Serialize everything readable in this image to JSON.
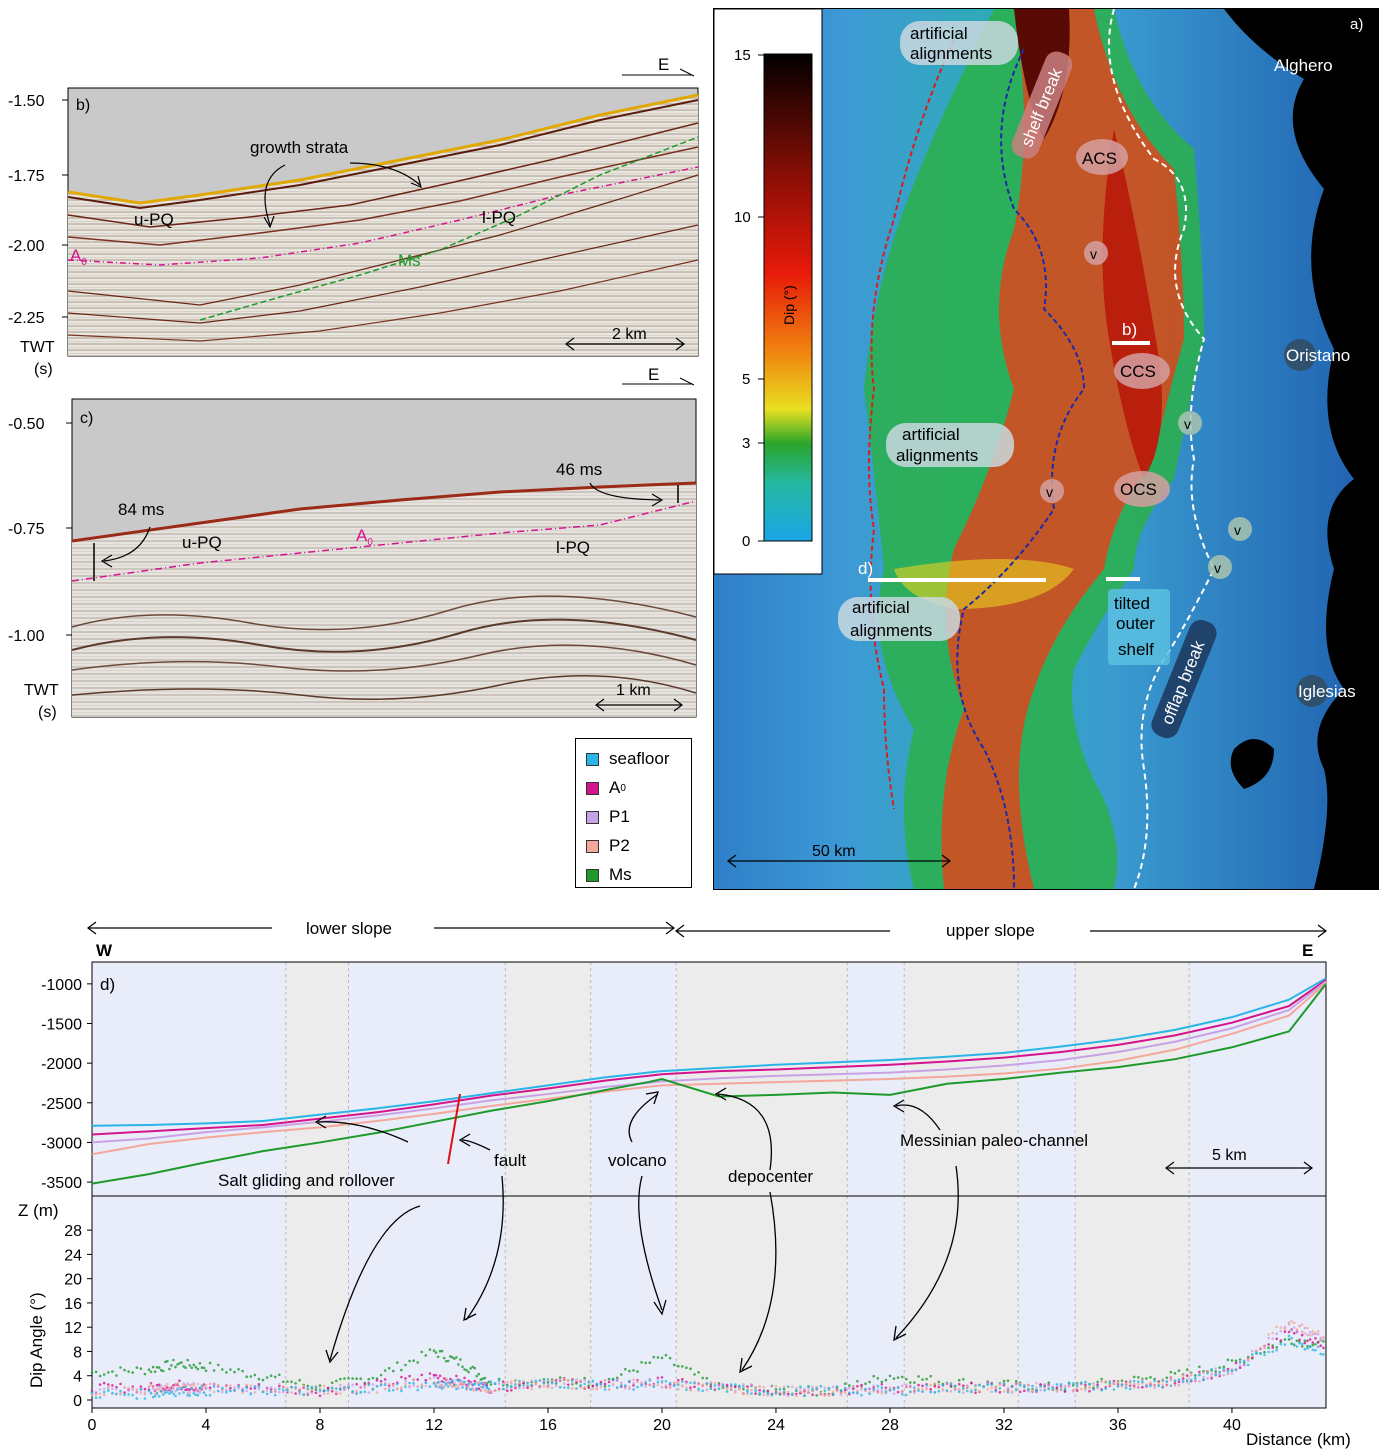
{
  "panel_a": {
    "label": "a)",
    "colorbar_title": "Dip (°)",
    "colorbar_ticks": [
      "15",
      "10",
      "5",
      "3",
      "0"
    ],
    "towns": [
      "Alghero",
      "Oristano",
      "Iglesias"
    ],
    "labels": {
      "artificial_1": [
        "artificial",
        "alignments"
      ],
      "artificial_2": [
        "artificial",
        "alignments"
      ],
      "artificial_3": [
        "artificial",
        "alignments"
      ],
      "shelf_break": "shelf break",
      "acs": "ACS",
      "ccs": "CCS",
      "ocs": "OCS",
      "v": "v",
      "b_line": "b)",
      "d_line": "d)",
      "tilted": [
        "tilted",
        "outer",
        "shelf"
      ],
      "offlap": "offlap break"
    },
    "scale": "50 km"
  },
  "panel_b": {
    "label": "b)",
    "direction": "E",
    "yticks": [
      "-1.50",
      "-1.75",
      "-2.00",
      "-2.25"
    ],
    "ylabel_1": "TWT",
    "ylabel_2": "(s)",
    "annotations": {
      "growth": "growth strata",
      "upq": "u-PQ",
      "lpq": "l-PQ",
      "ms": "Ms",
      "a0": "A",
      "a0_sub": "0"
    },
    "scale": "2 km"
  },
  "panel_c": {
    "label": "c)",
    "direction": "E",
    "yticks": [
      "-0.50",
      "-0.75",
      "-1.00"
    ],
    "ylabel_1": "TWT",
    "ylabel_2": "(s)",
    "annotations": {
      "ms84": "84 ms",
      "ms46": "46 ms",
      "upq": "u-PQ",
      "lpq": "l-PQ",
      "a0": "A",
      "a0_sub": "0"
    },
    "scale": "1 km"
  },
  "legend": [
    {
      "label": "seafloor",
      "sub": "",
      "color": "#29b6e6"
    },
    {
      "label": "A",
      "sub": "0",
      "color": "#d4148c"
    },
    {
      "label": "P1",
      "sub": "",
      "color": "#c9a2e6"
    },
    {
      "label": "P2",
      "sub": "",
      "color": "#f4a79a"
    },
    {
      "label": "Ms",
      "sub": "",
      "color": "#1d9a2b"
    }
  ],
  "panel_d": {
    "label": "d)",
    "west": "W",
    "east": "E",
    "lower_slope": "lower slope",
    "upper_slope": "upper slope",
    "annotations": {
      "salt": "Salt gliding and rollover",
      "fault": "fault",
      "volcano": "volcano",
      "depocenter": "depocenter",
      "messinian": "Messinian paleo-channel"
    },
    "scale": "5 km",
    "top_ylabel": "Z (m)",
    "bottom_ylabel": "Dip Angle (°)",
    "xlabel": "Distance (km)",
    "top_yticks": [
      "-1000",
      "-1500",
      "-2000",
      "-2500",
      "-3000",
      "-3500"
    ],
    "bottom_yticks": [
      "28",
      "24",
      "20",
      "16",
      "12",
      "8",
      "4",
      "0"
    ],
    "xticks": [
      "0",
      "4",
      "8",
      "12",
      "16",
      "20",
      "24",
      "28",
      "32",
      "36",
      "40"
    ]
  },
  "chart_data": [
    {
      "type": "line",
      "panel": "d) depth profile",
      "x": [
        0,
        2,
        4,
        6,
        8,
        10,
        12,
        14,
        16,
        18,
        19.5,
        20,
        22,
        24,
        26,
        28,
        30,
        32,
        34,
        36,
        38,
        40,
        42,
        43.3
      ],
      "xlim": [
        0,
        43.3
      ],
      "ylim": [
        -3600,
        -800
      ],
      "ylabel": "Z (m)",
      "series": [
        {
          "name": "seafloor",
          "color": "#29b6e6",
          "values": [
            -2790,
            -2780,
            -2760,
            -2730,
            -2650,
            -2570,
            -2480,
            -2380,
            -2280,
            -2180,
            -2120,
            -2100,
            -2060,
            -2020,
            -1990,
            -1960,
            -1920,
            -1870,
            -1790,
            -1700,
            -1580,
            -1420,
            -1200,
            -930
          ]
        },
        {
          "name": "A0",
          "color": "#d4148c",
          "values": [
            -2900,
            -2860,
            -2820,
            -2780,
            -2700,
            -2620,
            -2520,
            -2410,
            -2320,
            -2220,
            -2160,
            -2140,
            -2100,
            -2080,
            -2050,
            -2020,
            -1980,
            -1930,
            -1860,
            -1770,
            -1650,
            -1490,
            -1280,
            -950
          ]
        },
        {
          "name": "P1",
          "color": "#c9a2e6",
          "values": [
            -3000,
            -2950,
            -2870,
            -2810,
            -2740,
            -2660,
            -2570,
            -2470,
            -2390,
            -2300,
            -2250,
            -2230,
            -2190,
            -2160,
            -2140,
            -2120,
            -2080,
            -2030,
            -1960,
            -1860,
            -1730,
            -1560,
            -1330,
            -970
          ]
        },
        {
          "name": "P2",
          "color": "#f4a79a",
          "values": [
            -3150,
            -3020,
            -2940,
            -2870,
            -2810,
            -2730,
            -2640,
            -2540,
            -2450,
            -2360,
            -2300,
            -2280,
            -2260,
            -2240,
            -2220,
            -2200,
            -2170,
            -2130,
            -2070,
            -1970,
            -1830,
            -1630,
            -1400,
            -990
          ]
        },
        {
          "name": "Ms",
          "color": "#1d9a2b",
          "values": [
            -3520,
            -3400,
            -3250,
            -3110,
            -3000,
            -2880,
            -2740,
            -2600,
            -2480,
            -2340,
            -2240,
            -2200,
            -2420,
            -2400,
            -2370,
            -2400,
            -2260,
            -2200,
            -2120,
            -2050,
            -1950,
            -1800,
            -1600,
            -1000
          ]
        }
      ]
    },
    {
      "type": "scatter",
      "panel": "d) dip angle",
      "xlim": [
        0,
        43.3
      ],
      "ylim": [
        0,
        30
      ],
      "xlabel": "Distance (km)",
      "ylabel": "Dip Angle (°)",
      "x": [
        0,
        2,
        3,
        4,
        6,
        8,
        10,
        12,
        13,
        14,
        16,
        18,
        20,
        22,
        24,
        26,
        28,
        30,
        32,
        34,
        36,
        38,
        40,
        42,
        43.3
      ],
      "series": [
        {
          "name": "Ms",
          "color": "#1d9a2b",
          "values": [
            4.5,
            5,
            6,
            5.5,
            4,
            2,
            4,
            8,
            6,
            3,
            3,
            3,
            7,
            2,
            1.5,
            1.5,
            4,
            3,
            2.5,
            2,
            3,
            4,
            6,
            10,
            9
          ]
        },
        {
          "name": "A0",
          "color": "#d4148c",
          "values": [
            2,
            2,
            2.5,
            2,
            2,
            1.5,
            2.5,
            4,
            3,
            2,
            3,
            2.5,
            3,
            2,
            1.5,
            1.5,
            2,
            2,
            2,
            2,
            2.5,
            3,
            5,
            11,
            9
          ]
        },
        {
          "name": "P1",
          "color": "#c9a2e6",
          "values": [
            1.5,
            1.5,
            2,
            2,
            1.8,
            1.5,
            2,
            3,
            2.5,
            2,
            2.8,
            2.5,
            2.8,
            2,
            1.5,
            1.5,
            1.8,
            2,
            2,
            2,
            2.5,
            3,
            5,
            12,
            10
          ]
        },
        {
          "name": "P2",
          "color": "#f4a79a",
          "values": [
            1.5,
            1.8,
            2,
            2,
            2,
            1.5,
            2,
            3,
            2.5,
            2,
            2.8,
            2.5,
            2.8,
            2,
            1.5,
            1.5,
            1.8,
            2,
            2,
            2,
            2.5,
            3,
            5,
            13,
            10
          ]
        },
        {
          "name": "seafloor",
          "color": "#29b6e6",
          "values": [
            1,
            1,
            1.5,
            1.5,
            1.5,
            1.5,
            2,
            2.5,
            2.5,
            2.5,
            2.8,
            2.5,
            2.5,
            2,
            1.5,
            1.5,
            1.5,
            2,
            2,
            2,
            2.5,
            3,
            5,
            10,
            8
          ]
        }
      ]
    }
  ]
}
